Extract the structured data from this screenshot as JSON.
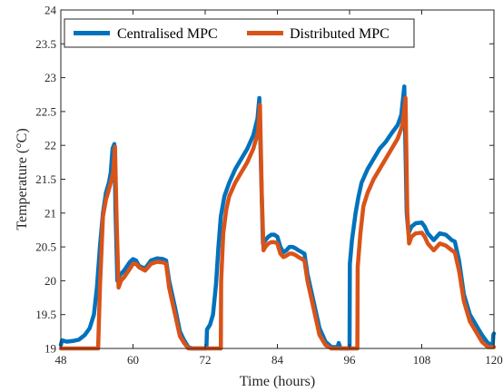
{
  "chart_data": {
    "type": "line",
    "title": "",
    "xlabel": "Time (hours)",
    "ylabel": "Temperature (°C)",
    "xlim": [
      48,
      120
    ],
    "ylim": [
      19,
      24
    ],
    "xticks": [
      48,
      60,
      72,
      84,
      96,
      108,
      120
    ],
    "yticks": [
      19,
      19.5,
      20,
      20.5,
      21,
      21.5,
      22,
      22.5,
      23,
      23.5,
      24
    ],
    "ytick_labels": [
      "19",
      "19.5",
      "20",
      "20.5",
      "21",
      "21.5",
      "22",
      "22.5",
      "23",
      "23.5",
      "24"
    ],
    "grid": false,
    "legend_position": "top-left",
    "series": [
      {
        "name": "Centralised MPC",
        "color": "#0072BD",
        "points": [
          [
            48,
            19.05
          ],
          [
            48.2,
            19.12
          ],
          [
            49,
            19.1
          ],
          [
            50,
            19.11
          ],
          [
            51,
            19.13
          ],
          [
            52,
            19.2
          ],
          [
            52.8,
            19.3
          ],
          [
            53.5,
            19.5
          ],
          [
            54,
            19.9
          ],
          [
            54.5,
            20.5
          ],
          [
            55,
            21.0
          ],
          [
            55.5,
            21.3
          ],
          [
            56,
            21.45
          ],
          [
            56.3,
            21.6
          ],
          [
            56.6,
            21.95
          ],
          [
            56.9,
            22.02
          ],
          [
            57.1,
            21.0
          ],
          [
            57.4,
            20.0
          ],
          [
            57.8,
            20.08
          ],
          [
            58.5,
            20.15
          ],
          [
            59.5,
            20.28
          ],
          [
            60,
            20.32
          ],
          [
            60.5,
            20.3
          ],
          [
            61,
            20.22
          ],
          [
            62,
            20.18
          ],
          [
            63,
            20.3
          ],
          [
            64,
            20.33
          ],
          [
            65,
            20.32
          ],
          [
            65.5,
            20.3
          ],
          [
            66,
            20.0
          ],
          [
            67,
            19.6
          ],
          [
            67.8,
            19.25
          ],
          [
            68.5,
            19.12
          ],
          [
            69.2,
            19.02
          ],
          [
            69.8,
            19.0
          ],
          [
            72.2,
            19.0
          ],
          [
            72.3,
            19.28
          ],
          [
            72.8,
            19.35
          ],
          [
            73.3,
            19.5
          ],
          [
            73.8,
            19.95
          ],
          [
            74.2,
            20.5
          ],
          [
            74.6,
            20.95
          ],
          [
            75.2,
            21.25
          ],
          [
            76,
            21.45
          ],
          [
            77,
            21.65
          ],
          [
            78,
            21.8
          ],
          [
            79,
            21.95
          ],
          [
            80,
            22.15
          ],
          [
            80.7,
            22.4
          ],
          [
            81,
            22.7
          ],
          [
            81.3,
            21.6
          ],
          [
            81.6,
            20.55
          ],
          [
            82,
            20.6
          ],
          [
            82.5,
            20.65
          ],
          [
            83,
            20.68
          ],
          [
            83.5,
            20.68
          ],
          [
            84,
            20.65
          ],
          [
            84.5,
            20.5
          ],
          [
            85,
            20.42
          ],
          [
            85.5,
            20.45
          ],
          [
            86,
            20.5
          ],
          [
            86.5,
            20.5
          ],
          [
            87,
            20.48
          ],
          [
            87.5,
            20.45
          ],
          [
            88.5,
            20.4
          ],
          [
            89,
            20.1
          ],
          [
            89.5,
            19.9
          ],
          [
            90,
            19.7
          ],
          [
            91,
            19.3
          ],
          [
            92,
            19.1
          ],
          [
            93,
            19.02
          ],
          [
            94,
            19.02
          ],
          [
            94.2,
            19.08
          ],
          [
            94.5,
            19.0
          ],
          [
            96,
            19.0
          ],
          [
            96.05,
            20.25
          ],
          [
            96.4,
            20.6
          ],
          [
            97,
            21.0
          ],
          [
            97.5,
            21.25
          ],
          [
            98,
            21.45
          ],
          [
            99,
            21.65
          ],
          [
            100,
            21.8
          ],
          [
            101,
            21.95
          ],
          [
            102,
            22.05
          ],
          [
            103,
            22.18
          ],
          [
            104,
            22.3
          ],
          [
            104.6,
            22.45
          ],
          [
            105.1,
            22.87
          ],
          [
            105.5,
            21.0
          ],
          [
            105.8,
            20.7
          ],
          [
            106.3,
            20.8
          ],
          [
            107,
            20.85
          ],
          [
            108,
            20.86
          ],
          [
            108.5,
            20.8
          ],
          [
            109,
            20.7
          ],
          [
            110,
            20.6
          ],
          [
            111,
            20.7
          ],
          [
            112,
            20.68
          ],
          [
            113,
            20.6
          ],
          [
            113.5,
            20.58
          ],
          [
            114.2,
            20.3
          ],
          [
            115,
            19.8
          ],
          [
            116,
            19.5
          ],
          [
            117,
            19.35
          ],
          [
            118,
            19.2
          ],
          [
            119,
            19.08
          ],
          [
            119.8,
            19.05
          ],
          [
            119.9,
            19.2
          ],
          [
            120,
            19.22
          ]
        ]
      },
      {
        "name": "Distributed MPC",
        "color": "#D95319",
        "points": [
          [
            48,
            19.0
          ],
          [
            54.2,
            19.0
          ],
          [
            54.5,
            19.9
          ],
          [
            55,
            20.95
          ],
          [
            55.5,
            21.2
          ],
          [
            56,
            21.35
          ],
          [
            56.3,
            21.45
          ],
          [
            56.7,
            21.6
          ],
          [
            57,
            21.98
          ],
          [
            57.3,
            20.8
          ],
          [
            57.6,
            19.9
          ],
          [
            58,
            20.0
          ],
          [
            58.5,
            20.05
          ],
          [
            59.5,
            20.18
          ],
          [
            60,
            20.25
          ],
          [
            60.5,
            20.25
          ],
          [
            61,
            20.2
          ],
          [
            62,
            20.15
          ],
          [
            63,
            20.25
          ],
          [
            64,
            20.28
          ],
          [
            65,
            20.27
          ],
          [
            65.5,
            20.25
          ],
          [
            66,
            19.9
          ],
          [
            67,
            19.5
          ],
          [
            67.8,
            19.18
          ],
          [
            68.5,
            19.08
          ],
          [
            69.2,
            19.0
          ],
          [
            74.6,
            19.0
          ],
          [
            74.65,
            20.0
          ],
          [
            75,
            20.7
          ],
          [
            75.5,
            21.05
          ],
          [
            76,
            21.25
          ],
          [
            77,
            21.45
          ],
          [
            78,
            21.6
          ],
          [
            79,
            21.75
          ],
          [
            80,
            21.95
          ],
          [
            80.8,
            22.2
          ],
          [
            81.1,
            22.6
          ],
          [
            81.4,
            21.3
          ],
          [
            81.7,
            20.45
          ],
          [
            82,
            20.5
          ],
          [
            82.5,
            20.55
          ],
          [
            83,
            20.57
          ],
          [
            83.5,
            20.57
          ],
          [
            84,
            20.55
          ],
          [
            84.5,
            20.4
          ],
          [
            85,
            20.35
          ],
          [
            85.5,
            20.37
          ],
          [
            86,
            20.4
          ],
          [
            86.5,
            20.4
          ],
          [
            87,
            20.38
          ],
          [
            87.5,
            20.35
          ],
          [
            88.5,
            20.3
          ],
          [
            89,
            20.0
          ],
          [
            89.5,
            19.8
          ],
          [
            90,
            19.6
          ],
          [
            91,
            19.2
          ],
          [
            92,
            19.05
          ],
          [
            93,
            19.0
          ],
          [
            97.3,
            19.0
          ],
          [
            97.35,
            20.2
          ],
          [
            97.8,
            20.7
          ],
          [
            98.3,
            21.1
          ],
          [
            99,
            21.3
          ],
          [
            100,
            21.5
          ],
          [
            101,
            21.65
          ],
          [
            102,
            21.8
          ],
          [
            103,
            21.95
          ],
          [
            104,
            22.1
          ],
          [
            104.8,
            22.3
          ],
          [
            105.3,
            22.7
          ],
          [
            105.6,
            21.0
          ],
          [
            105.9,
            20.55
          ],
          [
            106.3,
            20.65
          ],
          [
            107,
            20.7
          ],
          [
            108,
            20.71
          ],
          [
            108.5,
            20.65
          ],
          [
            109,
            20.55
          ],
          [
            110,
            20.45
          ],
          [
            111,
            20.55
          ],
          [
            112,
            20.52
          ],
          [
            113,
            20.45
          ],
          [
            113.5,
            20.42
          ],
          [
            114.2,
            20.15
          ],
          [
            115,
            19.7
          ],
          [
            116,
            19.4
          ],
          [
            117,
            19.25
          ],
          [
            118,
            19.1
          ],
          [
            119,
            19.02
          ],
          [
            120,
            19.02
          ]
        ]
      }
    ]
  }
}
